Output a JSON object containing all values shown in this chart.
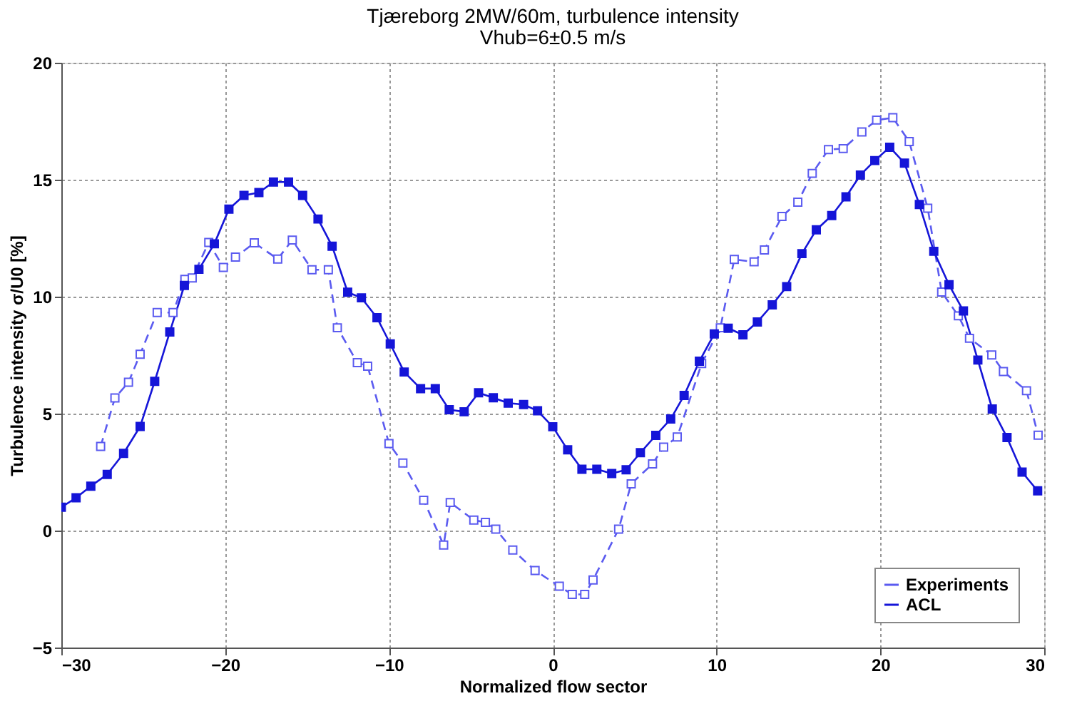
{
  "chart_data": {
    "type": "line",
    "title": "Tjæreborg 2MW/60m, turbulence intensity",
    "subtitle": "Vhub=6±0.5 m/s",
    "xlabel": "Normalized flow sector",
    "ylabel": "Turbulence intensity σ/U0 [%]",
    "xlim": [
      -30,
      30
    ],
    "xticks": [
      -30,
      -20,
      -10,
      0,
      10,
      20,
      30
    ],
    "ylim": [
      -5,
      20
    ],
    "yticks": [
      -5,
      0,
      5,
      10,
      15,
      20
    ],
    "grid": true,
    "legend": "bottom right",
    "marker": "square",
    "series": [
      {
        "name": "Experiments",
        "color": "#5b5bf0",
        "line_style": "dashed",
        "x": [
          -27.6,
          -26.73,
          -25.9,
          -25.19,
          -24.15,
          -23.18,
          -22.46,
          -22.01,
          -21.0,
          -20.11,
          -19.37,
          -18.22,
          -16.79,
          -15.9,
          -14.7,
          -13.7,
          -13.15,
          -11.93,
          -11.3,
          -10.0,
          -9.15,
          -7.88,
          -6.66,
          -6.26,
          -4.82,
          -4.11,
          -3.48,
          -2.44,
          -1.08,
          0.4,
          1.19,
          1.95,
          2.46,
          4.02,
          4.79,
          6.09,
          6.77,
          7.6,
          9.09,
          10.23,
          11.08,
          12.29,
          12.92,
          13.99,
          14.96,
          15.84,
          16.83,
          17.73,
          18.87,
          19.77,
          20.76,
          21.76,
          22.89,
          23.74,
          24.76,
          25.44,
          26.8,
          27.51,
          28.92,
          29.63
        ],
        "values": [
          3.6,
          5.67,
          6.34,
          7.54,
          9.32,
          9.32,
          10.74,
          10.8,
          12.32,
          11.25,
          11.69,
          12.3,
          11.61,
          12.42,
          11.15,
          11.15,
          8.67,
          7.18,
          7.03,
          3.72,
          2.89,
          1.3,
          -0.62,
          1.2,
          0.45,
          0.35,
          0.06,
          -0.83,
          -1.71,
          -2.38,
          -2.73,
          -2.73,
          -2.11,
          0.06,
          2.0,
          2.85,
          3.57,
          4.0,
          7.14,
          8.67,
          11.59,
          11.49,
          12.0,
          13.43,
          14.04,
          15.27,
          16.29,
          16.33,
          17.04,
          17.55,
          17.65,
          16.63,
          13.78,
          10.2,
          9.18,
          8.22,
          7.51,
          6.8,
          5.98,
          4.08
        ]
      },
      {
        "name": "ACL",
        "color": "#1515d8",
        "line_style": "solid",
        "x": [
          -30,
          -29.1,
          -28.2,
          -27.2,
          -26.2,
          -25.19,
          -24.3,
          -23.38,
          -22.49,
          -21.6,
          -20.66,
          -19.77,
          -18.85,
          -17.94,
          -17.05,
          -16.13,
          -15.27,
          -14.33,
          -13.47,
          -12.52,
          -11.68,
          -10.73,
          -9.92,
          -9.07,
          -8.07,
          -7.17,
          -6.32,
          -5.41,
          -4.53,
          -3.63,
          -2.72,
          -1.78,
          -0.93,
          0.0,
          0.91,
          1.78,
          2.69,
          3.6,
          4.48,
          5.35,
          6.29,
          7.2,
          8.02,
          8.95,
          9.86,
          10.71,
          11.61,
          12.49,
          13.4,
          14.28,
          15.21,
          16.09,
          17.03,
          17.9,
          18.78,
          19.66,
          20.57,
          21.47,
          22.38,
          23.26,
          24.19,
          25.07,
          25.95,
          26.83,
          27.73,
          28.65,
          29.6
        ],
        "values": [
          1.0,
          1.4,
          1.9,
          2.4,
          3.3,
          4.45,
          6.38,
          8.49,
          10.48,
          11.17,
          12.26,
          13.74,
          14.33,
          14.45,
          14.9,
          14.9,
          14.33,
          13.32,
          12.16,
          10.19,
          9.95,
          9.1,
          7.98,
          6.78,
          6.07,
          6.07,
          5.17,
          5.08,
          5.89,
          5.68,
          5.45,
          5.39,
          5.12,
          4.44,
          3.45,
          2.62,
          2.62,
          2.44,
          2.6,
          3.33,
          4.07,
          4.77,
          5.78,
          7.24,
          8.41,
          8.65,
          8.37,
          8.92,
          9.65,
          10.43,
          11.84,
          12.86,
          13.47,
          14.27,
          15.2,
          15.82,
          16.39,
          15.71,
          13.94,
          11.94,
          10.51,
          9.39,
          7.29,
          5.2,
          3.98,
          2.5,
          1.7
        ]
      }
    ]
  }
}
